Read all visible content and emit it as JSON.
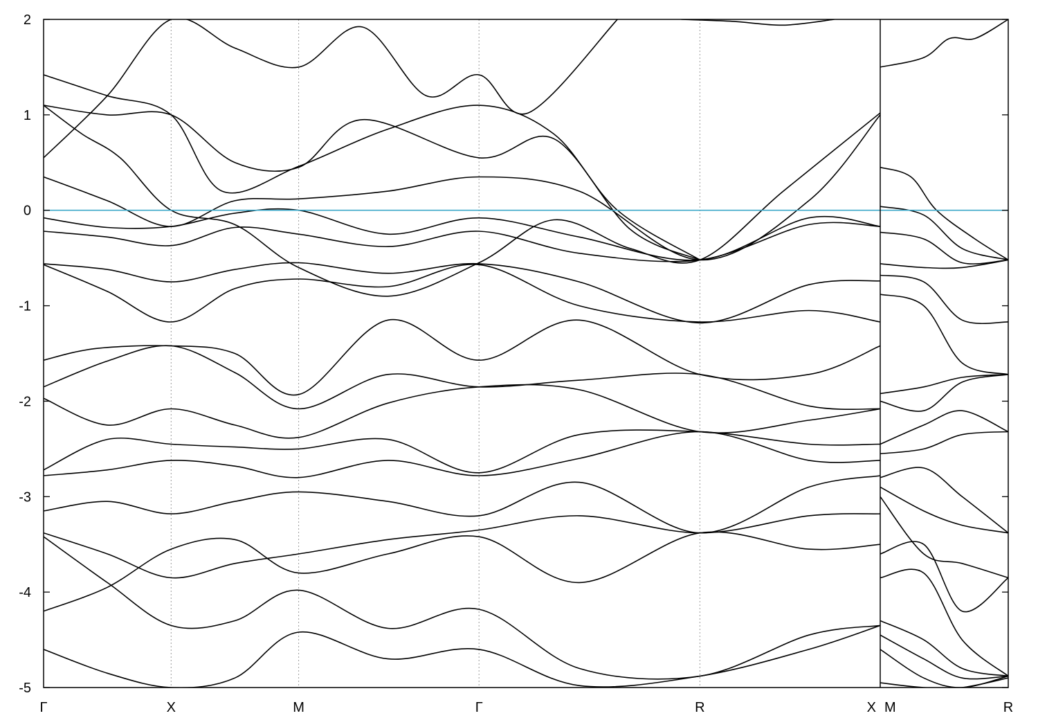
{
  "chart_data": {
    "type": "line",
    "title": "",
    "xlabel": "",
    "ylabel": "",
    "ylim": [
      -5,
      2
    ],
    "yticks": [
      -5,
      -4,
      -3,
      -2,
      -1,
      0,
      1,
      2
    ],
    "grid": "vertical dotted lines at high-symmetry points",
    "legend": "none",
    "colors": {
      "bands": "#000000",
      "fermi_level": "#3fa9c9"
    },
    "high_symmetry_points": [
      {
        "label": "Γ",
        "k": 0.0
      },
      {
        "label": "X",
        "k": 1.0
      },
      {
        "label": "M",
        "k": 2.0
      },
      {
        "label": "Γ",
        "k": 3.414
      },
      {
        "label": "R",
        "k": 5.146
      },
      {
        "label": "X",
        "k": 6.56
      },
      {
        "label": "M",
        "k": 6.56
      },
      {
        "label": "R",
        "k": 7.56
      }
    ],
    "path_break_k": 6.56,
    "fermi_level": 0,
    "series": [
      {
        "x": [
          0,
          0.5,
          1.0,
          1.5,
          2.0,
          2.7,
          3.414,
          4.2,
          5.146,
          6.0,
          6.56
        ],
        "y": [
          -0.08,
          -0.18,
          -0.17,
          -0.03,
          0.0,
          -0.25,
          -0.08,
          -0.28,
          -0.52,
          -0.08,
          -0.17
        ]
      },
      {
        "x": [
          0,
          0.5,
          1.0,
          1.5,
          2.0,
          2.7,
          3.414,
          4.2,
          5.146,
          6.0,
          6.56
        ],
        "y": [
          -0.22,
          -0.28,
          -0.37,
          -0.18,
          -0.25,
          -0.38,
          -0.22,
          -0.45,
          -0.52,
          -0.15,
          -0.17
        ]
      },
      {
        "x": [
          0,
          0.5,
          1.0,
          1.5,
          2.0,
          2.7,
          3.414,
          4.2,
          5.146,
          6.0,
          6.56
        ],
        "y": [
          -0.56,
          -0.62,
          -0.75,
          -0.62,
          -0.55,
          -0.66,
          -0.56,
          -0.75,
          -1.18,
          -0.78,
          -0.74
        ]
      },
      {
        "x": [
          0,
          0.5,
          1.0,
          1.5,
          2.0,
          2.7,
          3.414,
          4.2,
          5.146,
          6.0,
          6.56
        ],
        "y": [
          -0.57,
          -0.85,
          -1.17,
          -0.82,
          -0.72,
          -0.8,
          -0.57,
          -1.0,
          -1.17,
          -1.05,
          -1.17
        ]
      },
      {
        "x": [
          0,
          0.4,
          1.0,
          1.5,
          2.0,
          2.7,
          3.414,
          4.2,
          5.146,
          6.0,
          6.56
        ],
        "y": [
          -1.57,
          -1.45,
          -1.42,
          -1.5,
          -1.93,
          -1.15,
          -1.57,
          -1.15,
          -1.72,
          -1.72,
          -1.42
        ]
      },
      {
        "x": [
          0,
          0.5,
          1.0,
          1.5,
          2.0,
          2.7,
          3.414,
          4.2,
          5.146,
          6.0,
          6.56
        ],
        "y": [
          -1.85,
          -1.58,
          -1.42,
          -1.7,
          -2.08,
          -1.72,
          -1.85,
          -1.78,
          -1.72,
          -2.05,
          -2.08
        ]
      },
      {
        "x": [
          0,
          0.5,
          1.0,
          1.5,
          2.0,
          2.7,
          3.414,
          4.2,
          5.146,
          6.0,
          6.56
        ],
        "y": [
          -1.97,
          -2.25,
          -2.08,
          -2.25,
          -2.38,
          -2.02,
          -1.85,
          -1.88,
          -2.32,
          -2.2,
          -2.08
        ]
      },
      {
        "x": [
          0,
          0.5,
          1.0,
          1.5,
          2.0,
          2.7,
          3.414,
          4.2,
          5.146,
          6.0,
          6.56
        ],
        "y": [
          -2.72,
          -2.4,
          -2.45,
          -2.48,
          -2.5,
          -2.4,
          -2.75,
          -2.35,
          -2.32,
          -2.45,
          -2.45
        ]
      },
      {
        "x": [
          0,
          0.5,
          1.0,
          1.5,
          2.0,
          2.7,
          3.414,
          4.2,
          5.146,
          6.0,
          6.56
        ],
        "y": [
          -2.78,
          -2.72,
          -2.62,
          -2.68,
          -2.8,
          -2.62,
          -2.78,
          -2.6,
          -2.32,
          -2.62,
          -2.62
        ]
      },
      {
        "x": [
          0,
          0.5,
          1.0,
          1.5,
          2.0,
          2.7,
          3.414,
          4.2,
          5.146,
          6.0,
          6.56
        ],
        "y": [
          -3.15,
          -3.05,
          -3.18,
          -3.05,
          -2.95,
          -3.05,
          -3.2,
          -2.85,
          -3.38,
          -2.9,
          -2.78
        ]
      },
      {
        "x": [
          0,
          0.5,
          1.0,
          1.5,
          2.0,
          2.7,
          3.414,
          4.2,
          5.146,
          6.0,
          6.56
        ],
        "y": [
          -3.38,
          -3.6,
          -3.85,
          -3.7,
          -3.6,
          -3.45,
          -3.35,
          -3.2,
          -3.38,
          -3.2,
          -3.18
        ]
      },
      {
        "x": [
          0,
          0.5,
          1.0,
          1.5,
          2.0,
          2.7,
          3.414,
          4.2,
          5.146,
          6.0,
          6.56
        ],
        "y": [
          -4.2,
          -3.95,
          -3.55,
          -3.45,
          -3.8,
          -3.6,
          -3.42,
          -3.9,
          -3.38,
          -3.55,
          -3.5
        ]
      },
      {
        "x": [
          0,
          0.5,
          1.0,
          1.5,
          2.0,
          2.7,
          3.414,
          4.2,
          5.146,
          6.0,
          6.56
        ],
        "y": [
          -3.42,
          -3.9,
          -4.35,
          -4.3,
          -3.98,
          -4.38,
          -4.18,
          -4.8,
          -4.88,
          -4.45,
          -4.35
        ]
      },
      {
        "x": [
          0,
          0.5,
          1.0,
          1.5,
          2.0,
          2.7,
          3.414,
          4.2,
          5.146,
          6.0,
          6.56
        ],
        "y": [
          -4.6,
          -4.85,
          -5.0,
          -4.9,
          -4.42,
          -4.7,
          -4.6,
          -4.98,
          -4.88,
          -4.6,
          -4.35
        ]
      },
      {
        "x": [
          0,
          0.3,
          0.6,
          1.0,
          1.5,
          2.0,
          2.7,
          3.414,
          4.0,
          4.6,
          5.146,
          5.8,
          6.56
        ],
        "y": [
          1.1,
          0.8,
          0.55,
          0.0,
          -0.15,
          -0.6,
          -0.9,
          -0.55,
          -0.1,
          -0.4,
          -0.52,
          0.2,
          1.02
        ]
      },
      {
        "x": [
          0,
          0.5,
          1.0,
          1.5,
          2.0,
          2.7,
          3.414,
          4.2,
          5.146,
          6.0,
          6.56
        ],
        "y": [
          0.35,
          0.1,
          -0.17,
          0.1,
          0.12,
          0.2,
          0.35,
          0.2,
          -0.52,
          0.1,
          1.0
        ]
      },
      {
        "x": [
          0,
          0.5,
          1.0,
          1.4,
          2.0,
          2.7,
          3.414,
          4.0,
          4.5,
          5.146
        ],
        "y": [
          1.42,
          1.2,
          1.0,
          0.2,
          0.46,
          0.85,
          1.1,
          0.8,
          0.0,
          -0.52
        ]
      },
      {
        "x": [
          0,
          0.5,
          1.0,
          1.5,
          2.0,
          2.5,
          3.414,
          4.0,
          4.6,
          5.146
        ],
        "y": [
          1.1,
          1.0,
          1.0,
          0.5,
          0.45,
          0.95,
          0.55,
          0.75,
          -0.2,
          -0.52
        ]
      },
      {
        "x": [
          0,
          0.5,
          1.0,
          1.5,
          2.0,
          2.5,
          3.0,
          3.414,
          3.8,
          4.5
        ],
        "y": [
          0.55,
          1.2,
          2.0,
          1.7,
          1.5,
          1.92,
          1.2,
          1.42,
          1.02,
          2.0
        ]
      },
      {
        "x": [
          5.0,
          5.4,
          5.8,
          6.2
        ],
        "y": [
          2.0,
          1.98,
          1.94,
          2.0
        ]
      }
    ],
    "series_right": [
      {
        "x": [
          6.56,
          6.8,
          7.0,
          7.3,
          7.56
        ],
        "y": [
          0.45,
          0.35,
          0.0,
          -0.3,
          -0.52
        ]
      },
      {
        "x": [
          6.56,
          6.9,
          7.2,
          7.56
        ],
        "y": [
          0.04,
          -0.05,
          -0.4,
          -0.52
        ]
      },
      {
        "x": [
          6.56,
          6.9,
          7.2,
          7.56
        ],
        "y": [
          -0.23,
          -0.3,
          -0.55,
          -0.52
        ]
      },
      {
        "x": [
          6.56,
          6.9,
          7.2,
          7.56
        ],
        "y": [
          -0.56,
          -0.6,
          -0.6,
          -0.52
        ]
      },
      {
        "x": [
          6.56,
          6.9,
          7.2,
          7.56
        ],
        "y": [
          -0.68,
          -0.75,
          -1.15,
          -1.17
        ]
      },
      {
        "x": [
          6.56,
          6.9,
          7.2,
          7.56
        ],
        "y": [
          -0.88,
          -1.0,
          -1.6,
          -1.72
        ]
      },
      {
        "x": [
          6.56,
          6.9,
          7.2,
          7.56
        ],
        "y": [
          -1.92,
          -1.85,
          -1.75,
          -1.72
        ]
      },
      {
        "x": [
          6.56,
          6.9,
          7.2,
          7.56
        ],
        "y": [
          -2.0,
          -2.1,
          -1.8,
          -1.72
        ]
      },
      {
        "x": [
          6.56,
          6.9,
          7.2,
          7.56
        ],
        "y": [
          -2.45,
          -2.25,
          -2.1,
          -2.32
        ]
      },
      {
        "x": [
          6.56,
          6.9,
          7.2,
          7.56
        ],
        "y": [
          -2.55,
          -2.5,
          -2.35,
          -2.32
        ]
      },
      {
        "x": [
          6.56,
          6.9,
          7.2,
          7.56
        ],
        "y": [
          -2.8,
          -2.7,
          -3.0,
          -3.38
        ]
      },
      {
        "x": [
          6.56,
          6.9,
          7.2,
          7.56
        ],
        "y": [
          -2.9,
          -3.15,
          -3.3,
          -3.38
        ]
      },
      {
        "x": [
          6.56,
          6.9,
          7.2,
          7.56
        ],
        "y": [
          -3.0,
          -3.6,
          -3.7,
          -3.85
        ]
      },
      {
        "x": [
          6.56,
          6.9,
          7.2,
          7.56
        ],
        "y": [
          -3.6,
          -3.5,
          -4.2,
          -3.85
        ]
      },
      {
        "x": [
          6.56,
          6.9,
          7.2,
          7.56
        ],
        "y": [
          -3.85,
          -3.8,
          -4.5,
          -4.88
        ]
      },
      {
        "x": [
          6.56,
          6.9,
          7.2,
          7.56
        ],
        "y": [
          -4.3,
          -4.5,
          -4.8,
          -4.88
        ]
      },
      {
        "x": [
          6.56,
          6.9,
          7.2,
          7.56
        ],
        "y": [
          -4.45,
          -4.7,
          -4.9,
          -4.88
        ]
      },
      {
        "x": [
          6.56,
          6.9,
          7.2,
          7.56
        ],
        "y": [
          -4.6,
          -4.9,
          -5.0,
          -4.88
        ]
      },
      {
        "x": [
          6.56,
          6.9,
          7.2,
          7.56
        ],
        "y": [
          -4.95,
          -5.0,
          -5.0,
          -4.9
        ]
      },
      {
        "x": [
          6.56,
          6.9,
          7.1,
          7.3,
          7.56
        ],
        "y": [
          1.5,
          1.6,
          1.8,
          1.8,
          2.0
        ]
      }
    ]
  }
}
